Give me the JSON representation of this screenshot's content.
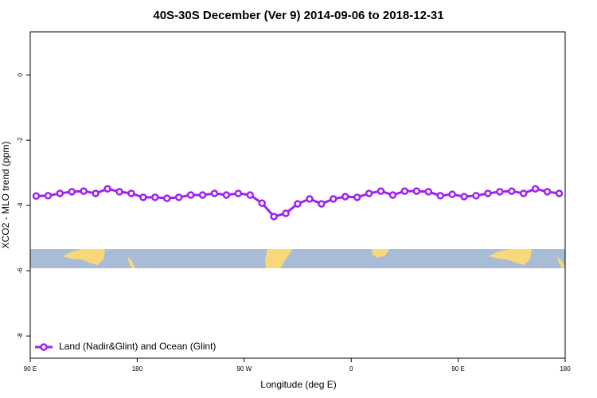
{
  "chart_data": {
    "type": "line",
    "title": "40S-30S December (Ver 9)   2014-09-06 to 2018-12-31",
    "xlabel": "Longitude (deg E)",
    "ylabel": "XCO2 - MLO trend (ppm)",
    "x": [
      95,
      105,
      115,
      125,
      135,
      145,
      155,
      165,
      175,
      185,
      195,
      205,
      215,
      225,
      235,
      245,
      255,
      265,
      275,
      285,
      295,
      305,
      315,
      325,
      335,
      345,
      355,
      365,
      375,
      385,
      395,
      405,
      415,
      425,
      435,
      445,
      455,
      465,
      475,
      485,
      495,
      505,
      515,
      525,
      535
    ],
    "series": [
      {
        "name": "Land (Nadir&Glint) and Ocean (Glint)",
        "color": "#a020f0",
        "values": [
          -3.71,
          -3.7,
          -3.63,
          -3.58,
          -3.56,
          -3.63,
          -3.49,
          -3.58,
          -3.63,
          -3.75,
          -3.75,
          -3.78,
          -3.75,
          -3.68,
          -3.68,
          -3.63,
          -3.68,
          -3.63,
          -3.68,
          -3.93,
          -4.34,
          -4.24,
          -3.95,
          -3.8,
          -3.95,
          -3.8,
          -3.73,
          -3.75,
          -3.63,
          -3.56,
          -3.68,
          -3.56,
          -3.56,
          -3.58,
          -3.7,
          -3.66,
          -3.73,
          -3.7,
          -3.63,
          -3.58,
          -3.56,
          -3.63,
          -3.49,
          -3.58,
          -3.63
        ]
      }
    ],
    "xlim": [
      90,
      540
    ],
    "xticks": [
      {
        "value": 90,
        "label": "90 E"
      },
      180,
      {
        "value": 270,
        "label": "90 W"
      },
      {
        "value": 360,
        "label": "0"
      },
      {
        "value": 450,
        "label": "90 E"
      },
      {
        "value": 540,
        "label": "180"
      }
    ],
    "ylim": [
      -8.68,
      1.32
    ],
    "yticks": [
      0,
      -2,
      -4,
      -6,
      -8
    ],
    "legend": "bottom left"
  }
}
